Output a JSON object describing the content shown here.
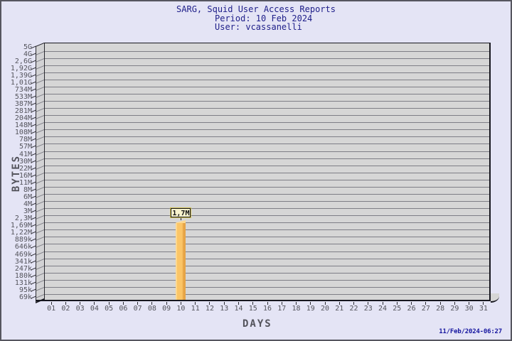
{
  "title": {
    "line1": "SARG, Squid User Access Reports",
    "line2": "Period: 10 Feb 2024",
    "line3": "User: vcassanelli"
  },
  "footer": {
    "timestamp": "11/Feb/2024-06:27"
  },
  "chart_data": {
    "type": "bar",
    "title": "SARG, Squid User Access Reports",
    "subtitle_lines": [
      "Period: 10 Feb 2024",
      "User: vcassanelli"
    ],
    "xlabel": "DAYS",
    "ylabel": "BYTES",
    "y_scale": "log",
    "grid": "horizontal",
    "x_tick_labels": [
      "01",
      "02",
      "03",
      "04",
      "05",
      "06",
      "07",
      "08",
      "09",
      "10",
      "11",
      "12",
      "13",
      "14",
      "15",
      "16",
      "17",
      "18",
      "19",
      "20",
      "21",
      "22",
      "23",
      "24",
      "25",
      "26",
      "27",
      "28",
      "29",
      "30",
      "31"
    ],
    "y_tick_labels": [
      "5G",
      "4G",
      "2,6G",
      "1,92G",
      "1,39G",
      "1,01G",
      "734M",
      "533M",
      "387M",
      "281M",
      "204M",
      "148M",
      "108M",
      "78M",
      "57M",
      "41M",
      "30M",
      "22M",
      "16M",
      "11M",
      "8M",
      "6M",
      "4M",
      "3M",
      "2,3M",
      "1,69M",
      "1,22M",
      "889k",
      "646k",
      "469k",
      "341k",
      "247k",
      "180k",
      "131k",
      "95k",
      "69k"
    ],
    "bars": [
      {
        "x": "10",
        "value_label": "1,7M",
        "value_bytes": 1700000
      }
    ],
    "values_bytes_by_day": [
      null,
      null,
      null,
      null,
      null,
      null,
      null,
      null,
      null,
      1700000,
      null,
      null,
      null,
      null,
      null,
      null,
      null,
      null,
      null,
      null,
      null,
      null,
      null,
      null,
      null,
      null,
      null,
      null,
      null,
      null,
      null
    ],
    "colors": {
      "page_bg": "#e4e4f5",
      "plot_bg": "#d6d6d6",
      "grid_line": "#7e7e86",
      "axis_line": "#17171f",
      "axis_text": "#54545c",
      "title_text": "#20208a",
      "timestamp_text": "#1717a0",
      "bar_main": "#fbc567",
      "bar_light": "#fdd88f",
      "bar_dark": "#e6a446",
      "annotation_bg": "#f8f3cd",
      "annotation_rim": "#cdbd4e"
    }
  }
}
